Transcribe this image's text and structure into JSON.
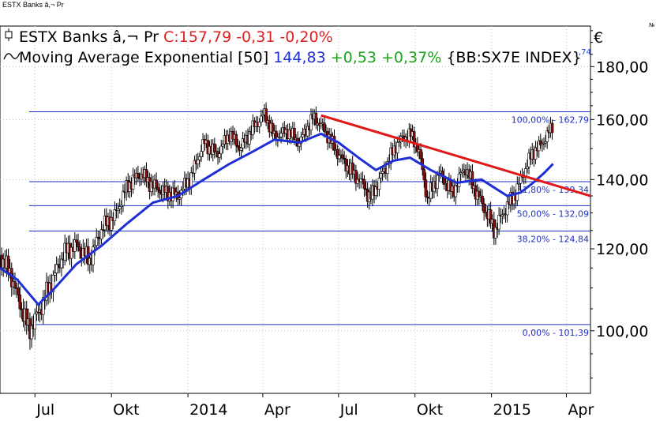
{
  "header": {
    "small_title": "ESTX Banks â,¬ Pr",
    "currency": "€",
    "corner_mark": "№",
    "clipped_value": ",74"
  },
  "legend": {
    "price": {
      "name": "ESTX Banks â,¬ Pr",
      "value": "C:157,79 -0,31 -0,20%",
      "color": "#e02020"
    },
    "ema": {
      "name": "Moving Average Exponential [50]",
      "value": "144,83",
      "change": "+0,53 +0,37%",
      "ticker": "{BB:SX7E INDEX}",
      "color": "#1f2fd6",
      "change_color": "#1aa51a"
    }
  },
  "icons": {
    "price_symbol": "candlestick-icon",
    "ema_symbol": "wave-icon"
  },
  "chart_data": {
    "type": "line",
    "title": "ESTX Banks â,¬ Pr",
    "x_tick_labels": [
      "Jul",
      "Okt",
      "2014",
      "Apr",
      "Jul",
      "Okt",
      "2015",
      "Apr"
    ],
    "y_tick_labels": [
      "100,00",
      "120,00",
      "140,00",
      "160,00",
      "180,00"
    ],
    "y_ticks": [
      100,
      120,
      140,
      160,
      180
    ],
    "ylim": [
      87,
      197
    ],
    "x_range": [
      "2013-05-20",
      "2015-04-30"
    ],
    "grid": true,
    "y_axis_side": "right",
    "price_series": {
      "name": "ESTX Banks â,¬ Pr",
      "color": "#000000",
      "points": [
        [
          "2013-05-20",
          118
        ],
        [
          "2013-06-01",
          114
        ],
        [
          "2013-06-10",
          108
        ],
        [
          "2013-06-24",
          100
        ],
        [
          "2013-07-05",
          104
        ],
        [
          "2013-07-20",
          111
        ],
        [
          "2013-08-05",
          119
        ],
        [
          "2013-08-20",
          121
        ],
        [
          "2013-09-05",
          117
        ],
        [
          "2013-09-20",
          126
        ],
        [
          "2013-10-05",
          129
        ],
        [
          "2013-10-20",
          138
        ],
        [
          "2013-11-05",
          142
        ],
        [
          "2013-11-20",
          138
        ],
        [
          "2013-12-05",
          136
        ],
        [
          "2013-12-20",
          135
        ],
        [
          "2014-01-05",
          141
        ],
        [
          "2014-01-20",
          152
        ],
        [
          "2014-02-05",
          148
        ],
        [
          "2014-02-20",
          155
        ],
        [
          "2014-03-05",
          150
        ],
        [
          "2014-03-20",
          157
        ],
        [
          "2014-04-03",
          162
        ],
        [
          "2014-04-15",
          154
        ],
        [
          "2014-05-01",
          156
        ],
        [
          "2014-05-15",
          152
        ],
        [
          "2014-06-01",
          161
        ],
        [
          "2014-06-15",
          156
        ],
        [
          "2014-07-01",
          148
        ],
        [
          "2014-07-15",
          143
        ],
        [
          "2014-08-01",
          138
        ],
        [
          "2014-08-08",
          134
        ],
        [
          "2014-08-25",
          143
        ],
        [
          "2014-09-10",
          152
        ],
        [
          "2014-09-25",
          155
        ],
        [
          "2014-10-05",
          150
        ],
        [
          "2014-10-16",
          134
        ],
        [
          "2014-10-30",
          142
        ],
        [
          "2014-11-15",
          136
        ],
        [
          "2014-11-30",
          144
        ],
        [
          "2014-12-10",
          138
        ],
        [
          "2014-12-20",
          133
        ],
        [
          "2015-01-05",
          125
        ],
        [
          "2015-01-15",
          130
        ],
        [
          "2015-01-30",
          136
        ],
        [
          "2015-02-10",
          143
        ],
        [
          "2015-02-20",
          149
        ],
        [
          "2015-03-01",
          151
        ],
        [
          "2015-03-10",
          155
        ],
        [
          "2015-03-16",
          158
        ]
      ]
    },
    "ema_series": {
      "name": "Moving Average Exponential [50]",
      "color": "#1f2fd6",
      "points": [
        [
          "2013-05-20",
          115
        ],
        [
          "2013-06-10",
          112
        ],
        [
          "2013-07-05",
          106
        ],
        [
          "2013-07-25",
          110
        ],
        [
          "2013-08-20",
          116
        ],
        [
          "2013-09-20",
          121
        ],
        [
          "2013-10-20",
          127
        ],
        [
          "2013-11-20",
          133
        ],
        [
          "2013-12-20",
          135
        ],
        [
          "2014-01-20",
          140
        ],
        [
          "2014-02-20",
          145
        ],
        [
          "2014-03-20",
          149
        ],
        [
          "2014-04-15",
          153
        ],
        [
          "2014-05-15",
          152
        ],
        [
          "2014-06-10",
          155
        ],
        [
          "2014-07-01",
          152
        ],
        [
          "2014-07-25",
          147
        ],
        [
          "2014-08-15",
          143
        ],
        [
          "2014-09-05",
          146
        ],
        [
          "2014-09-25",
          147
        ],
        [
          "2014-10-20",
          143
        ],
        [
          "2014-11-20",
          139
        ],
        [
          "2014-12-20",
          140
        ],
        [
          "2015-01-20",
          135
        ],
        [
          "2015-02-05",
          136
        ],
        [
          "2015-02-20",
          139
        ],
        [
          "2015-03-05",
          142
        ],
        [
          "2015-03-16",
          145
        ]
      ]
    },
    "trendline": {
      "color": "#e01818",
      "from": [
        "2014-06-10",
        161.5
      ],
      "to": [
        "2015-04-30",
        135
      ]
    },
    "fibonacci_levels": [
      {
        "value": 162.79,
        "label": "100,00% - 162,79"
      },
      {
        "value": 139.34,
        "label": "61,80% - 139,34"
      },
      {
        "value": 132.09,
        "label": "50,00% - 132,09"
      },
      {
        "value": 124.84,
        "label": "38,20% - 124,84"
      },
      {
        "value": 101.39,
        "label": "0,00% - 101,39"
      }
    ],
    "fib_start": "2013-06-24",
    "fib_color": "#2030c8"
  }
}
